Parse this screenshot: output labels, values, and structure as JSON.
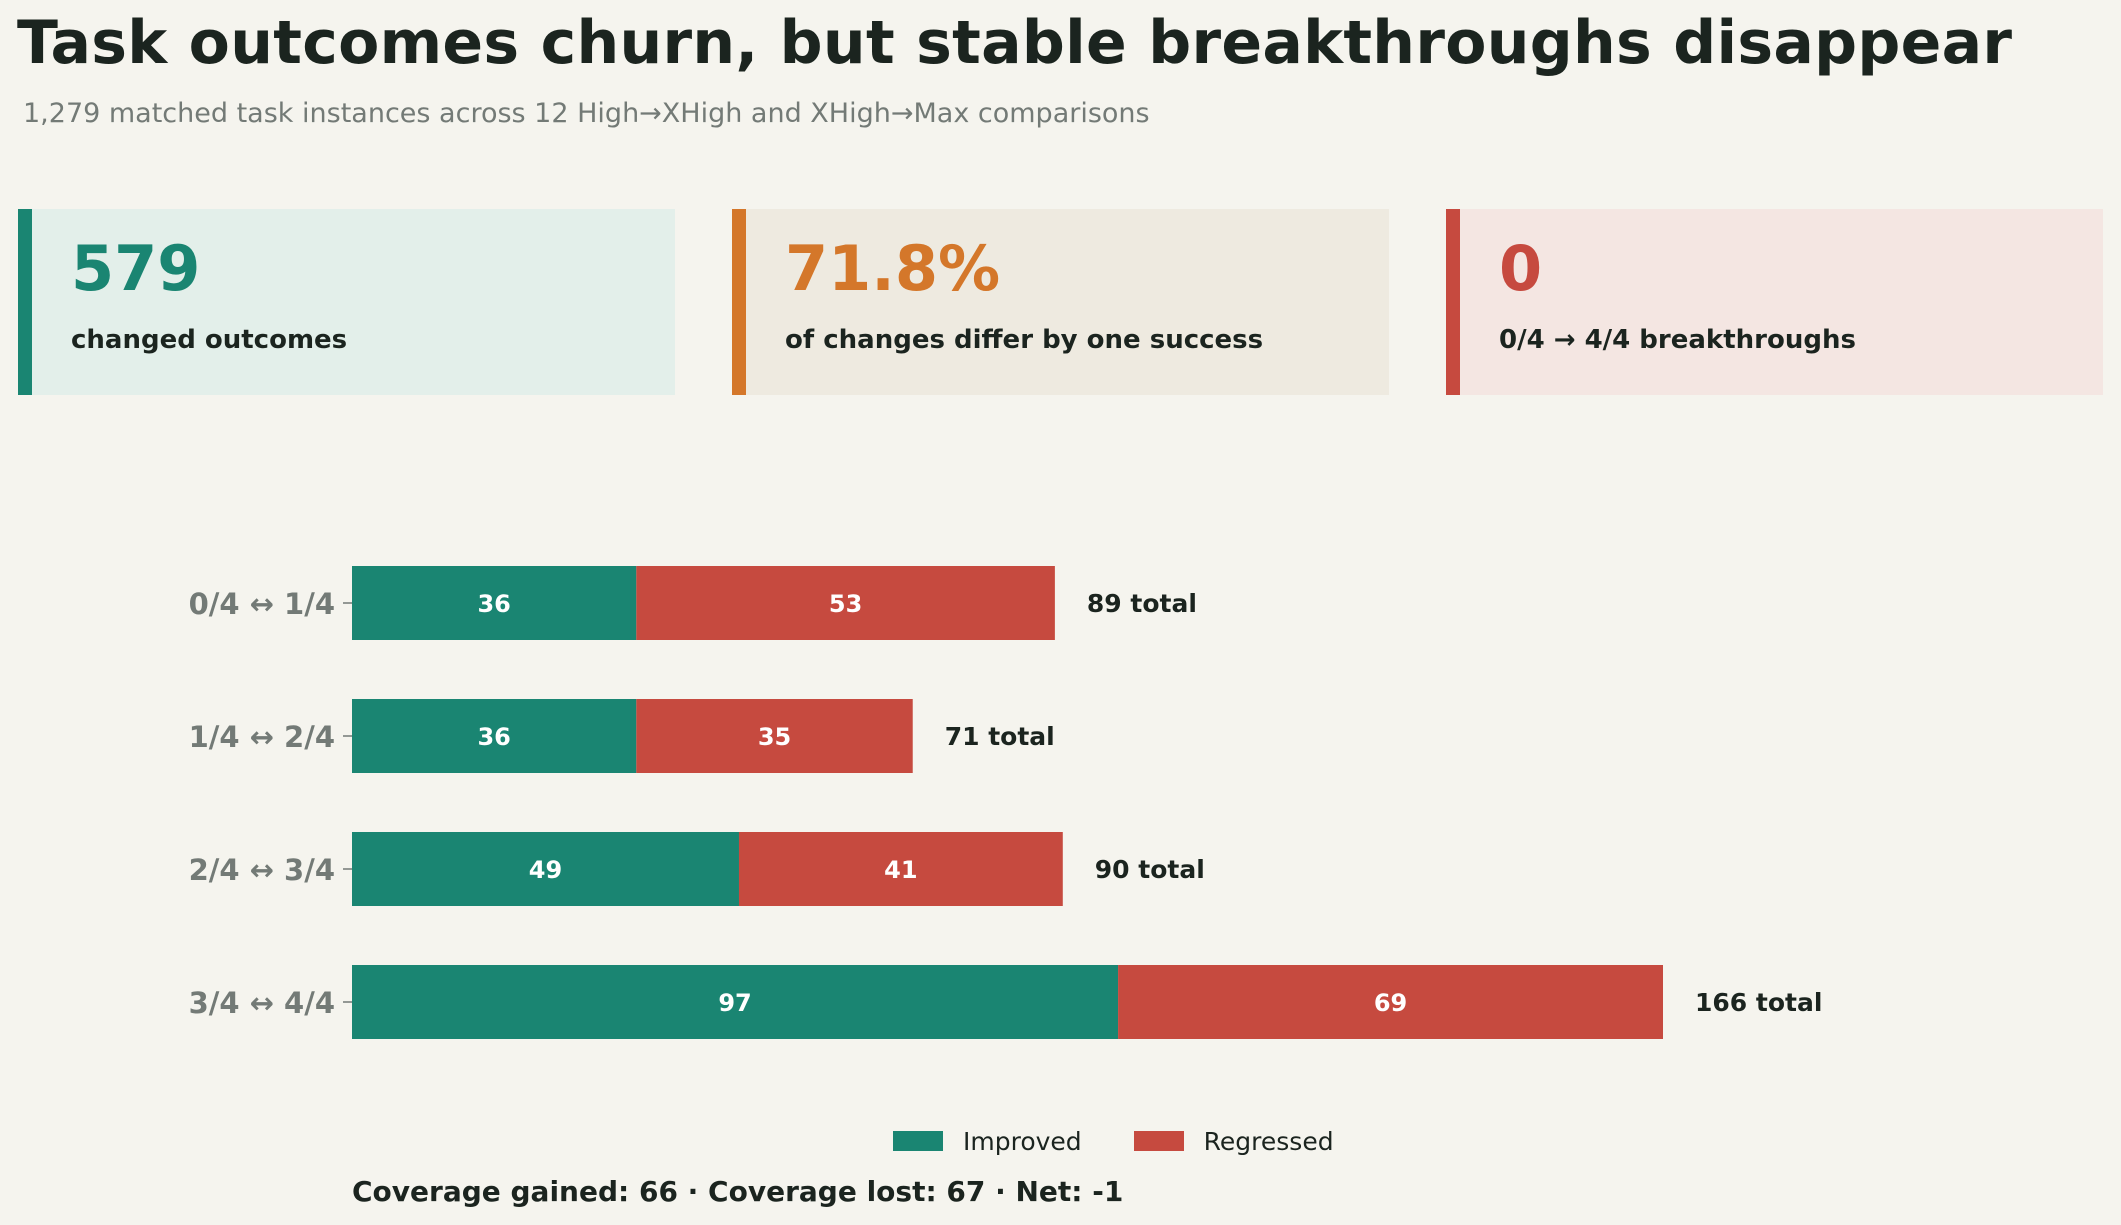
{
  "header": {
    "title": "Task outcomes churn, but stable breakthroughs disappear",
    "subtitle": "1,279 matched task instances across 12 High→XHigh and XHigh→Max comparisons"
  },
  "cards": [
    {
      "value": "579",
      "label": "changed outcomes",
      "accent": "#1a8572",
      "bg": "#e3efea"
    },
    {
      "value": "71.8%",
      "label": "of changes differ by one success",
      "accent": "#d4772a",
      "bg": "#eeeae0"
    },
    {
      "value": "0",
      "label": "0/4 → 4/4 breakthroughs",
      "accent": "#c64a3f",
      "bg": "#f4e6e2"
    }
  ],
  "colors": {
    "improved": "#1a8572",
    "regressed": "#c64a3f",
    "category_label": "#737a76",
    "total_label": "#1b241f"
  },
  "chart_data": {
    "type": "bar",
    "orientation": "horizontal",
    "stacked": true,
    "categories": [
      "0/4 ↔ 1/4",
      "1/4 ↔ 2/4",
      "2/4 ↔ 3/4",
      "3/4 ↔ 4/4"
    ],
    "series": [
      {
        "name": "Improved",
        "values": [
          36,
          36,
          49,
          97
        ]
      },
      {
        "name": "Regressed",
        "values": [
          53,
          35,
          41,
          69
        ]
      }
    ],
    "totals": [
      "89 total",
      "71 total",
      "90 total",
      "166 total"
    ],
    "title": "",
    "xlabel": "",
    "ylabel": "",
    "xlim": [
      0,
      166
    ],
    "grid": false,
    "legend_position": "bottom-center"
  },
  "legend": {
    "improved_label": "Improved",
    "regressed_label": "Regressed"
  },
  "footer": {
    "text": "Coverage gained: 66  ·  Coverage lost: 67  ·  Net: -1"
  }
}
